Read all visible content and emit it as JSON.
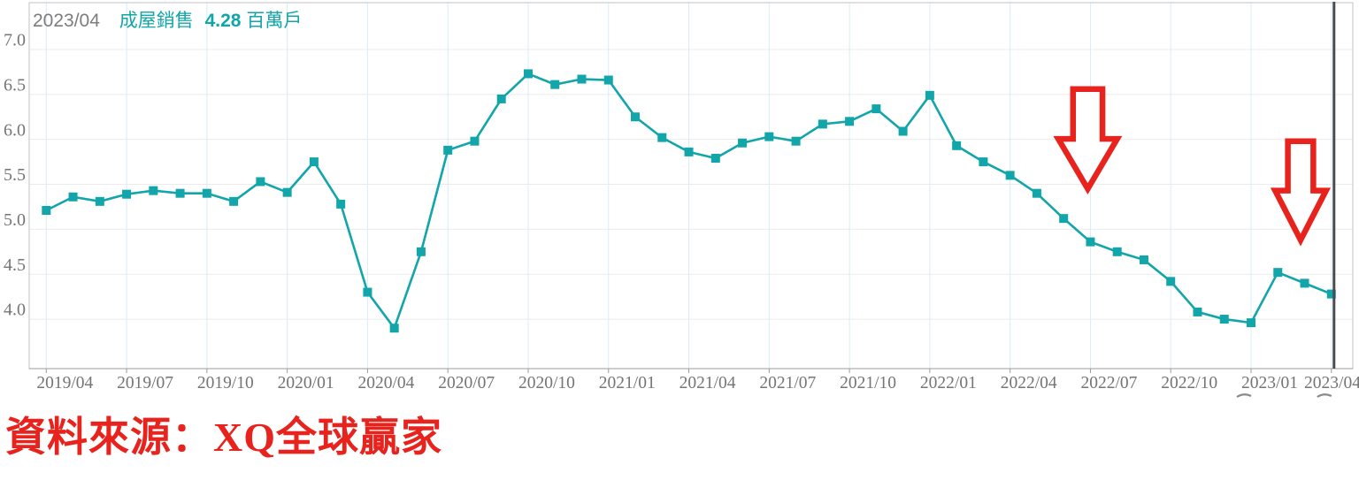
{
  "header": {
    "date_label": "2023/04",
    "series_name": "成屋銷售",
    "value": "4.28",
    "unit": "百萬戶"
  },
  "source_note": "資料來源：XQ全球贏家",
  "colors": {
    "series": "#12a5a9",
    "header_date": "#7d7d7d",
    "axis_text": "#757575",
    "annotation_red": "#e8231d",
    "cursor_line": "#4b4b50",
    "h_grid": "#ebebeb",
    "v_grid": "#d9ecf7",
    "plot_border": "#c2c2c2",
    "axis_line": "#9b9b9b",
    "tick_mark": "#9b9b9b",
    "small_mark": "#8a8a8a"
  },
  "chart_data": {
    "type": "line",
    "title": "成屋銷售 4.28百萬戶 (2023/04)",
    "series_name": "成屋銷售",
    "unit": "百萬戶",
    "marker": "square",
    "grid": true,
    "legend_position": "top-left-overlay",
    "x": [
      "2019/04",
      "2019/05",
      "2019/06",
      "2019/07",
      "2019/08",
      "2019/09",
      "2019/10",
      "2019/11",
      "2019/12",
      "2020/01",
      "2020/02",
      "2020/03",
      "2020/04",
      "2020/05",
      "2020/06",
      "2020/07",
      "2020/08",
      "2020/09",
      "2020/10",
      "2020/11",
      "2020/12",
      "2021/01",
      "2021/02",
      "2021/03",
      "2021/04",
      "2021/05",
      "2021/06",
      "2021/07",
      "2021/08",
      "2021/09",
      "2021/10",
      "2021/11",
      "2021/12",
      "2022/01",
      "2022/02",
      "2022/03",
      "2022/04",
      "2022/05",
      "2022/06",
      "2022/07",
      "2022/08",
      "2022/09",
      "2022/10",
      "2022/11",
      "2022/12",
      "2023/01",
      "2023/02",
      "2023/03",
      "2023/04"
    ],
    "values": [
      5.21,
      5.36,
      5.31,
      5.39,
      5.43,
      5.4,
      5.4,
      5.31,
      5.53,
      5.41,
      5.75,
      5.28,
      4.3,
      3.9,
      4.75,
      5.88,
      5.98,
      6.45,
      6.73,
      6.61,
      6.67,
      6.66,
      6.25,
      6.02,
      5.86,
      5.79,
      5.96,
      6.03,
      5.98,
      6.17,
      6.2,
      6.34,
      6.09,
      6.49,
      5.93,
      5.75,
      5.6,
      5.4,
      5.12,
      4.86,
      4.75,
      4.66,
      4.42,
      4.08,
      4.0,
      3.96,
      4.52,
      4.4,
      4.28
    ],
    "y_ticks": [
      7.0,
      6.5,
      6.0,
      5.5,
      5.0,
      4.5,
      4.0
    ],
    "ylim": [
      3.45,
      7.52
    ],
    "x_tick_step": 3,
    "x_tick_labels": [
      "2019/04",
      "2019/07",
      "2019/10",
      "2020/01",
      "2020/04",
      "2020/07",
      "2020/10",
      "2021/01",
      "2021/04",
      "2021/07",
      "2021/10",
      "2022/01",
      "2022/04",
      "2022/07",
      "2022/10",
      "2023/01",
      "2023/04"
    ],
    "annotations": {
      "cursor_at_month": "2023/04",
      "arrows_down": [
        {
          "between_months": "2022/06-2022/07",
          "month_index": 38.9,
          "top_value": 6.56,
          "tip_value": 5.45,
          "width_months": 2.2,
          "shaft_width_months": 1.1
        },
        {
          "between_months": "2023/02-2023/03",
          "month_index": 46.85,
          "top_value": 5.98,
          "tip_value": 4.88,
          "width_months": 1.9,
          "shaft_width_months": 0.95
        }
      ],
      "small_marks_under_labels": [
        "2023/01",
        "2023/04"
      ]
    }
  }
}
